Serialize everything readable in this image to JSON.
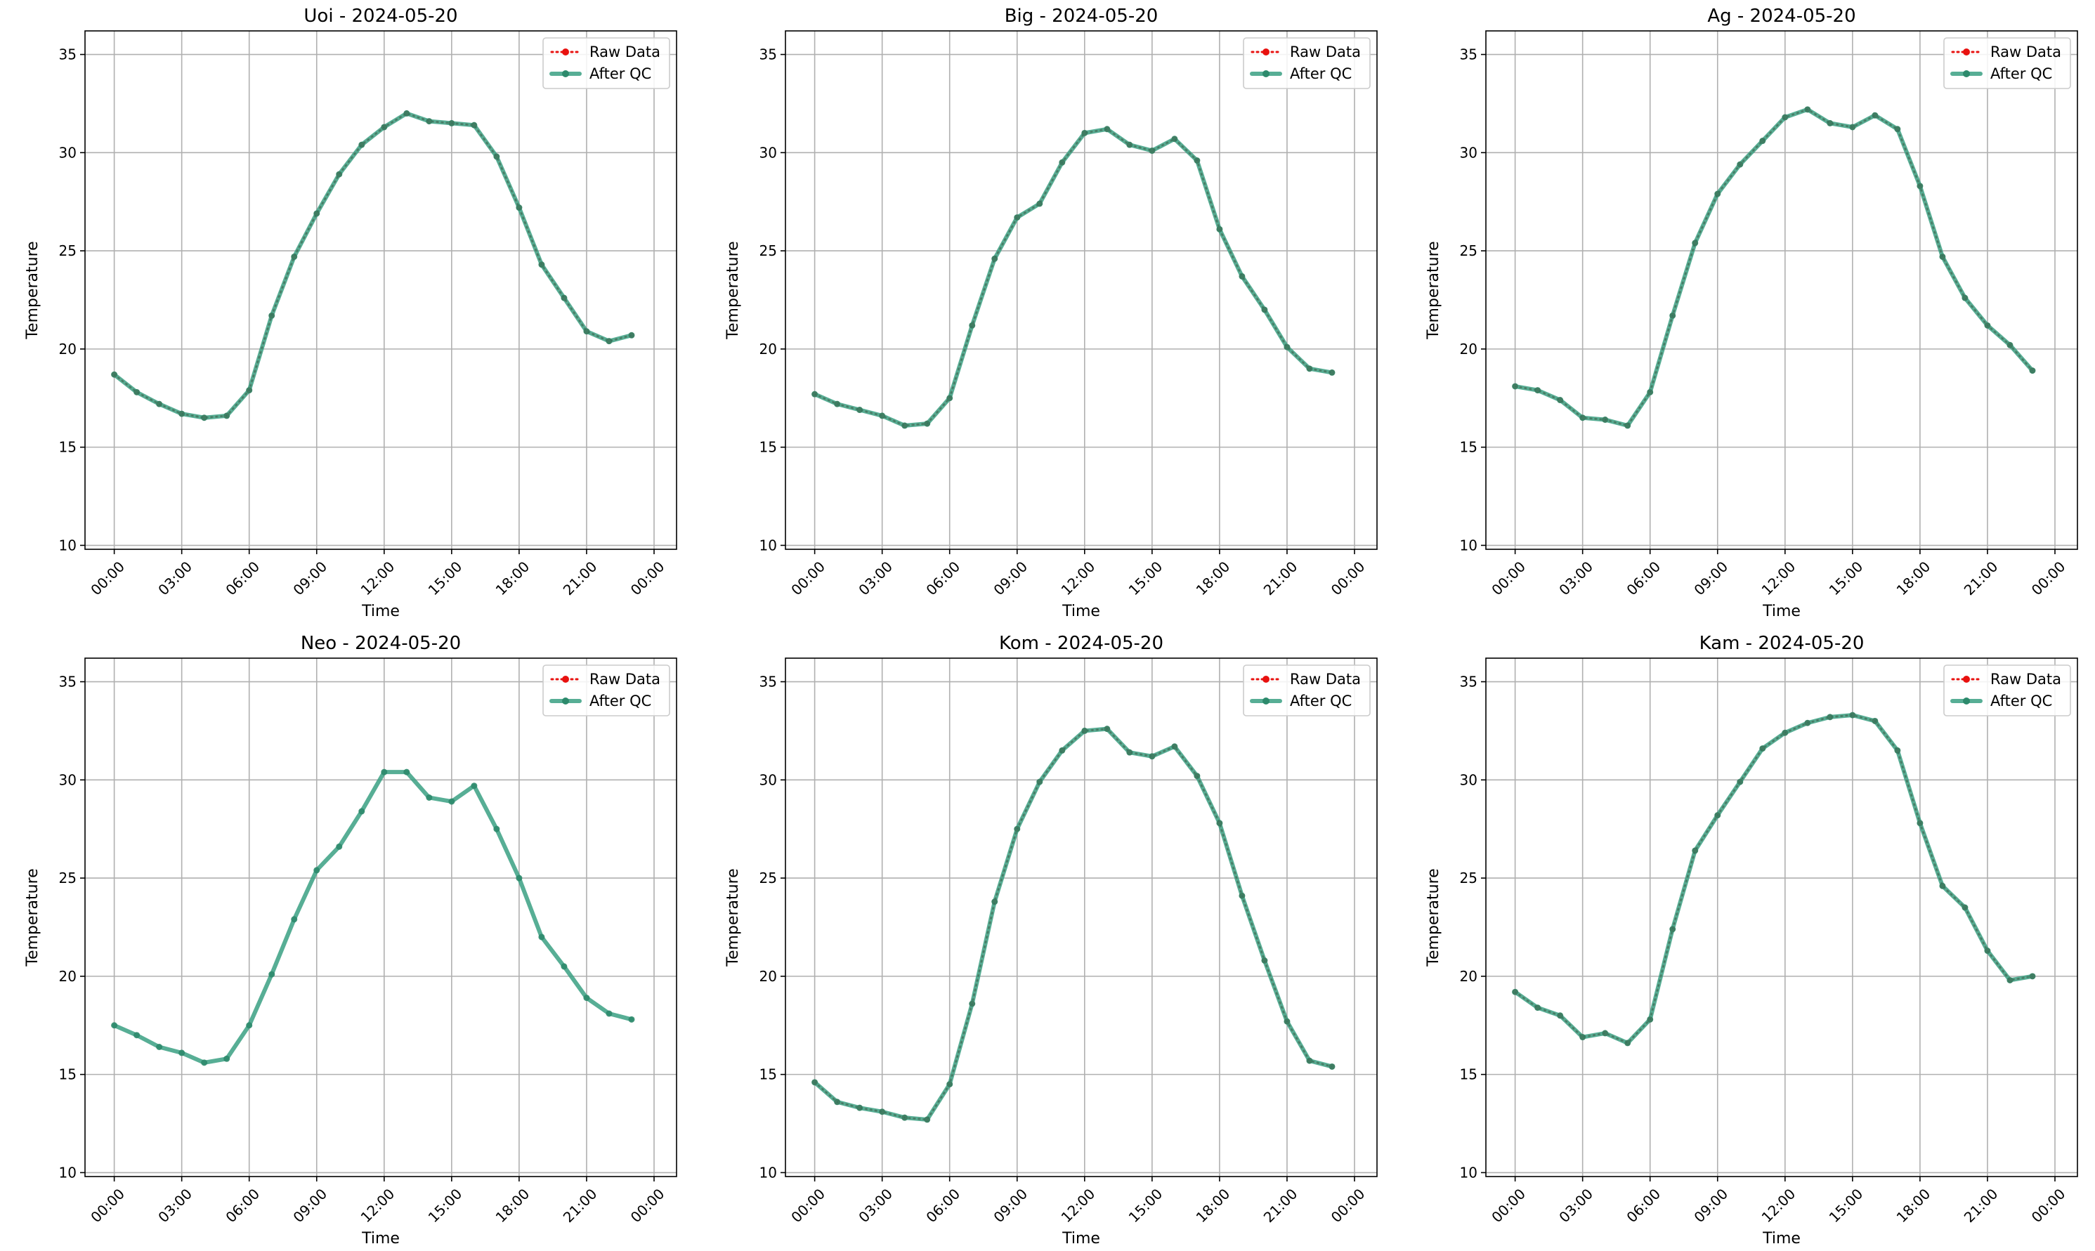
{
  "chart_data": [
    {
      "type": "line",
      "title": "Uoi - 2024-05-20",
      "xlabel": "Time",
      "ylabel": "Temperature",
      "ylim": [
        9.8,
        36.2
      ],
      "yticks": [
        10,
        15,
        20,
        25,
        30,
        35
      ],
      "xticks": [
        "00:00",
        "03:00",
        "06:00",
        "09:00",
        "12:00",
        "15:00",
        "18:00",
        "21:00",
        "00:00"
      ],
      "grid": true,
      "legend_position": "top-right",
      "hours": [
        0,
        1,
        2,
        3,
        4,
        5,
        6,
        7,
        8,
        9,
        10,
        11,
        12,
        13,
        14,
        15,
        16,
        17,
        18,
        19,
        20,
        21,
        22,
        23
      ],
      "series": [
        {
          "name": "Raw Data",
          "color": "#e8110f",
          "style": "dotted",
          "values": [
            18.7,
            17.8,
            17.2,
            16.7,
            16.5,
            16.6,
            17.9,
            21.7,
            24.7,
            26.9,
            28.9,
            30.4,
            31.3,
            32.0,
            31.6,
            31.5,
            31.4,
            29.8,
            27.2,
            24.3,
            22.6,
            20.9,
            20.4,
            20.7
          ]
        },
        {
          "name": "After QC",
          "color": "#3aa083",
          "style": "solid",
          "values": [
            18.7,
            17.8,
            17.2,
            16.7,
            16.5,
            16.6,
            17.9,
            21.7,
            24.7,
            26.9,
            28.9,
            30.4,
            31.3,
            32.0,
            31.6,
            31.5,
            31.4,
            29.8,
            27.2,
            24.3,
            22.6,
            20.9,
            20.4,
            20.7
          ]
        }
      ]
    },
    {
      "type": "line",
      "title": "Big - 2024-05-20",
      "xlabel": "Time",
      "ylabel": "Temperature",
      "ylim": [
        9.8,
        36.2
      ],
      "yticks": [
        10,
        15,
        20,
        25,
        30,
        35
      ],
      "xticks": [
        "00:00",
        "03:00",
        "06:00",
        "09:00",
        "12:00",
        "15:00",
        "18:00",
        "21:00",
        "00:00"
      ],
      "grid": true,
      "legend_position": "top-right",
      "hours": [
        0,
        1,
        2,
        3,
        4,
        5,
        6,
        7,
        8,
        9,
        10,
        11,
        12,
        13,
        14,
        15,
        16,
        17,
        18,
        19,
        20,
        21,
        22,
        23
      ],
      "series": [
        {
          "name": "Raw Data",
          "color": "#e8110f",
          "style": "dotted",
          "values": [
            17.7,
            17.2,
            16.9,
            16.6,
            16.1,
            16.2,
            17.5,
            21.2,
            24.6,
            26.7,
            27.4,
            29.5,
            31.0,
            31.2,
            30.4,
            30.1,
            30.7,
            29.6,
            26.1,
            23.7,
            22.0,
            20.1,
            19.0,
            18.8
          ]
        },
        {
          "name": "After QC",
          "color": "#3aa083",
          "style": "solid",
          "values": [
            17.7,
            17.2,
            16.9,
            16.6,
            16.1,
            16.2,
            17.5,
            21.2,
            24.6,
            26.7,
            27.4,
            29.5,
            31.0,
            31.2,
            30.4,
            30.1,
            30.7,
            29.6,
            26.1,
            23.7,
            22.0,
            20.1,
            19.0,
            18.8
          ]
        }
      ]
    },
    {
      "type": "line",
      "title": "Ag - 2024-05-20",
      "xlabel": "Time",
      "ylabel": "Temperature",
      "ylim": [
        9.8,
        36.2
      ],
      "yticks": [
        10,
        15,
        20,
        25,
        30,
        35
      ],
      "xticks": [
        "00:00",
        "03:00",
        "06:00",
        "09:00",
        "12:00",
        "15:00",
        "18:00",
        "21:00",
        "00:00"
      ],
      "grid": true,
      "legend_position": "top-right",
      "hours": [
        0,
        1,
        2,
        3,
        4,
        5,
        6,
        7,
        8,
        9,
        10,
        11,
        12,
        13,
        14,
        15,
        16,
        17,
        18,
        19,
        20,
        21,
        22,
        23
      ],
      "series": [
        {
          "name": "Raw Data",
          "color": "#e8110f",
          "style": "dotted",
          "values": [
            18.1,
            17.9,
            17.4,
            16.5,
            16.4,
            16.1,
            17.8,
            21.7,
            25.4,
            27.9,
            29.4,
            30.6,
            31.8,
            32.2,
            31.5,
            31.3,
            31.9,
            31.2,
            28.3,
            24.7,
            22.6,
            21.2,
            20.2,
            18.9
          ]
        },
        {
          "name": "After QC",
          "color": "#3aa083",
          "style": "solid",
          "values": [
            18.1,
            17.9,
            17.4,
            16.5,
            16.4,
            16.1,
            17.8,
            21.7,
            25.4,
            27.9,
            29.4,
            30.6,
            31.8,
            32.2,
            31.5,
            31.3,
            31.9,
            31.2,
            28.3,
            24.7,
            22.6,
            21.2,
            20.2,
            18.9
          ]
        }
      ]
    },
    {
      "type": "line",
      "title": "Neo - 2024-05-20",
      "xlabel": "Time",
      "ylabel": "Temperature",
      "ylim": [
        9.8,
        36.2
      ],
      "yticks": [
        10,
        15,
        20,
        25,
        30,
        35
      ],
      "xticks": [
        "00:00",
        "03:00",
        "06:00",
        "09:00",
        "12:00",
        "15:00",
        "18:00",
        "21:00",
        "00:00"
      ],
      "grid": true,
      "legend_position": "top-right",
      "hours": [
        0,
        1,
        2,
        3,
        4,
        5,
        6,
        7,
        8,
        9,
        10,
        11,
        12,
        13,
        14,
        15,
        16,
        17,
        18,
        19,
        20,
        21,
        22,
        23
      ],
      "series": [
        {
          "name": "Raw Data",
          "color": "#e8110f",
          "style": "dotted",
          "values": []
        },
        {
          "name": "After QC",
          "color": "#3aa083",
          "style": "solid",
          "values": [
            17.5,
            17.0,
            16.4,
            16.1,
            15.6,
            15.8,
            17.5,
            20.1,
            22.9,
            25.4,
            26.6,
            28.4,
            30.4,
            30.4,
            29.1,
            28.9,
            29.7,
            27.5,
            25.0,
            22.0,
            20.5,
            18.9,
            18.1,
            17.8
          ]
        }
      ]
    },
    {
      "type": "line",
      "title": "Kom - 2024-05-20",
      "xlabel": "Time",
      "ylabel": "Temperature",
      "ylim": [
        9.8,
        36.2
      ],
      "yticks": [
        10,
        15,
        20,
        25,
        30,
        35
      ],
      "xticks": [
        "00:00",
        "03:00",
        "06:00",
        "09:00",
        "12:00",
        "15:00",
        "18:00",
        "21:00",
        "00:00"
      ],
      "grid": true,
      "legend_position": "top-right",
      "hours": [
        0,
        1,
        2,
        3,
        4,
        5,
        6,
        7,
        8,
        9,
        10,
        11,
        12,
        13,
        14,
        15,
        16,
        17,
        18,
        19,
        20,
        21,
        22,
        23
      ],
      "series": [
        {
          "name": "Raw Data",
          "color": "#e8110f",
          "style": "dotted",
          "values": [
            14.6,
            13.6,
            13.3,
            13.1,
            12.8,
            12.7,
            14.5,
            18.6,
            23.8,
            27.5,
            29.9,
            31.5,
            32.5,
            32.6,
            31.4,
            31.2,
            31.7,
            30.2,
            27.8,
            24.1,
            20.8,
            17.7,
            15.7,
            15.4
          ]
        },
        {
          "name": "After QC",
          "color": "#3aa083",
          "style": "solid",
          "values": [
            14.6,
            13.6,
            13.3,
            13.1,
            12.8,
            12.7,
            14.5,
            18.6,
            23.8,
            27.5,
            29.9,
            31.5,
            32.5,
            32.6,
            31.4,
            31.2,
            31.7,
            30.2,
            27.8,
            24.1,
            20.8,
            17.7,
            15.7,
            15.4
          ]
        }
      ]
    },
    {
      "type": "line",
      "title": "Kam - 2024-05-20",
      "xlabel": "Time",
      "ylabel": "Temperature",
      "ylim": [
        9.8,
        36.2
      ],
      "yticks": [
        10,
        15,
        20,
        25,
        30,
        35
      ],
      "xticks": [
        "00:00",
        "03:00",
        "06:00",
        "09:00",
        "12:00",
        "15:00",
        "18:00",
        "21:00",
        "00:00"
      ],
      "grid": true,
      "legend_position": "top-right",
      "hours": [
        0,
        1,
        2,
        3,
        4,
        5,
        6,
        7,
        8,
        9,
        10,
        11,
        12,
        13,
        14,
        15,
        16,
        17,
        18,
        19,
        20,
        21,
        22,
        23
      ],
      "series": [
        {
          "name": "Raw Data",
          "color": "#e8110f",
          "style": "dotted",
          "values": [
            19.2,
            18.4,
            18.0,
            16.9,
            17.1,
            16.6,
            17.8,
            22.4,
            26.4,
            28.2,
            29.9,
            31.6,
            32.4,
            32.9,
            33.2,
            33.3,
            33.0,
            31.5,
            27.8,
            24.6,
            23.5,
            21.3,
            19.8,
            20.0
          ]
        },
        {
          "name": "After QC",
          "color": "#3aa083",
          "style": "solid",
          "values": [
            19.2,
            18.4,
            18.0,
            16.9,
            17.1,
            16.6,
            17.8,
            22.4,
            26.4,
            28.2,
            29.9,
            31.6,
            32.4,
            32.9,
            33.2,
            33.3,
            33.0,
            31.5,
            27.8,
            24.6,
            23.5,
            21.3,
            19.8,
            20.0
          ]
        }
      ]
    }
  ]
}
